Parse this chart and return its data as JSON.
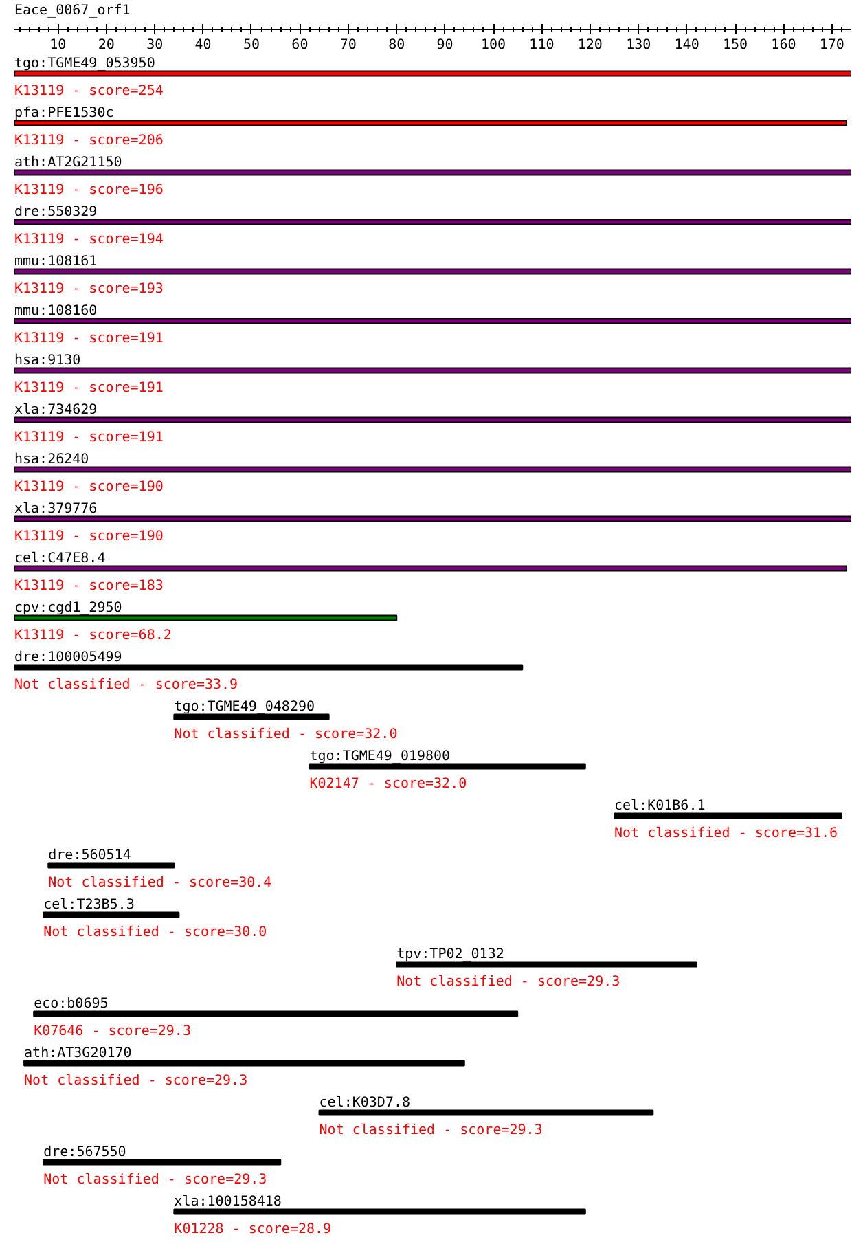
{
  "chart_data": {
    "type": "bar",
    "orientation": "horizontal",
    "title": "Eace_0067_orf1",
    "categories": [
      "tgo:TGME49_053950",
      "pfa:PFE1530c",
      "ath:AT2G21150",
      "dre:550329",
      "mmu:108161",
      "mmu:108160",
      "hsa:9130",
      "xla:734629",
      "hsa:26240",
      "xla:379776",
      "cel:C47E8.4",
      "cpv:cgd1_2950",
      "dre:100005499",
      "tgo:TGME49_048290",
      "tgo:TGME49_019800",
      "cel:K01B6.1",
      "dre:560514",
      "cel:T23B5.3",
      "tpv:TP02_0132",
      "eco:b0695",
      "ath:AT3G20170",
      "cel:K03D7.8",
      "dre:567550",
      "xla:100158418"
    ],
    "base": [
      1,
      1,
      1,
      1,
      1,
      1,
      1,
      1,
      1,
      1,
      1,
      1,
      1,
      34,
      62,
      125,
      8,
      7,
      80,
      5,
      3,
      64,
      7,
      34
    ],
    "values": [
      173,
      172,
      173,
      173,
      173,
      173,
      173,
      173,
      173,
      173,
      172,
      79,
      105,
      32,
      57,
      47,
      26,
      28,
      62,
      100,
      91,
      69,
      49,
      85
    ],
    "colors": [
      "#ff0000",
      "#ff0000",
      "#800080",
      "#800080",
      "#800080",
      "#800080",
      "#800080",
      "#800080",
      "#800080",
      "#800080",
      "#800080",
      "#008000",
      "#000000",
      "#000000",
      "#000000",
      "#000000",
      "#000000",
      "#000000",
      "#000000",
      "#000000",
      "#000000",
      "#000000",
      "#000000",
      "#000000"
    ],
    "annotations": [
      "K13119 - score=254",
      "K13119 - score=206",
      "K13119 - score=196",
      "K13119 - score=194",
      "K13119 - score=193",
      "K13119 - score=191",
      "K13119 - score=191",
      "K13119 - score=191",
      "K13119 - score=190",
      "K13119 - score=190",
      "K13119 - score=183",
      "K13119 - score=68.2",
      "Not classified - score=33.9",
      "Not classified - score=32.0",
      "K02147 - score=32.0",
      "Not classified - score=31.6",
      "Not classified - score=30.4",
      "Not classified - score=30.0",
      "Not classified - score=29.3",
      "K07646 - score=29.3",
      "Not classified - score=29.3",
      "Not classified - score=29.3",
      "Not classified - score=29.3",
      "K01228 - score=28.9"
    ],
    "xlim": [
      1,
      174
    ],
    "xticks": [
      {
        "value": 2,
        "label": null
      },
      {
        "value": 4,
        "label": null
      },
      {
        "value": 6,
        "label": null
      },
      {
        "value": 8,
        "label": null
      },
      10,
      {
        "value": 12,
        "label": null
      },
      {
        "value": 14,
        "label": null
      },
      {
        "value": 16,
        "label": null
      },
      {
        "value": 18,
        "label": null
      },
      20,
      {
        "value": 22,
        "label": null
      },
      {
        "value": 24,
        "label": null
      },
      {
        "value": 26,
        "label": null
      },
      {
        "value": 28,
        "label": null
      },
      30,
      {
        "value": 32,
        "label": null
      },
      {
        "value": 34,
        "label": null
      },
      {
        "value": 36,
        "label": null
      },
      {
        "value": 38,
        "label": null
      },
      40,
      {
        "value": 42,
        "label": null
      },
      {
        "value": 44,
        "label": null
      },
      {
        "value": 46,
        "label": null
      },
      {
        "value": 48,
        "label": null
      },
      50,
      {
        "value": 52,
        "label": null
      },
      {
        "value": 54,
        "label": null
      },
      {
        "value": 56,
        "label": null
      },
      {
        "value": 58,
        "label": null
      },
      60,
      {
        "value": 62,
        "label": null
      },
      {
        "value": 64,
        "label": null
      },
      {
        "value": 66,
        "label": null
      },
      {
        "value": 68,
        "label": null
      },
      70,
      {
        "value": 72,
        "label": null
      },
      {
        "value": 74,
        "label": null
      },
      {
        "value": 76,
        "label": null
      },
      {
        "value": 78,
        "label": null
      },
      80,
      {
        "value": 82,
        "label": null
      },
      {
        "value": 84,
        "label": null
      },
      {
        "value": 86,
        "label": null
      },
      {
        "value": 88,
        "label": null
      },
      90,
      {
        "value": 92,
        "label": null
      },
      {
        "value": 94,
        "label": null
      },
      {
        "value": 96,
        "label": null
      },
      {
        "value": 98,
        "label": null
      },
      100,
      {
        "value": 102,
        "label": null
      },
      {
        "value": 104,
        "label": null
      },
      {
        "value": 106,
        "label": null
      },
      {
        "value": 108,
        "label": null
      },
      110,
      {
        "value": 112,
        "label": null
      },
      {
        "value": 114,
        "label": null
      },
      {
        "value": 116,
        "label": null
      },
      {
        "value": 118,
        "label": null
      },
      120,
      {
        "value": 122,
        "label": null
      },
      {
        "value": 124,
        "label": null
      },
      {
        "value": 126,
        "label": null
      },
      {
        "value": 128,
        "label": null
      },
      130,
      {
        "value": 132,
        "label": null
      },
      {
        "value": 134,
        "label": null
      },
      {
        "value": 136,
        "label": null
      },
      {
        "value": 138,
        "label": null
      },
      140,
      {
        "value": 142,
        "label": null
      },
      {
        "value": 144,
        "label": null
      },
      {
        "value": 146,
        "label": null
      },
      {
        "value": 148,
        "label": null
      },
      150,
      {
        "value": 152,
        "label": null
      },
      {
        "value": 154,
        "label": null
      },
      {
        "value": 156,
        "label": null
      },
      {
        "value": 158,
        "label": null
      },
      160,
      {
        "value": 162,
        "label": null
      },
      {
        "value": 164,
        "label": null
      },
      {
        "value": 166,
        "label": null
      },
      {
        "value": 168,
        "label": null
      },
      170,
      {
        "value": 172,
        "label": null
      }
    ],
    "tick_labels": "x"
  }
}
